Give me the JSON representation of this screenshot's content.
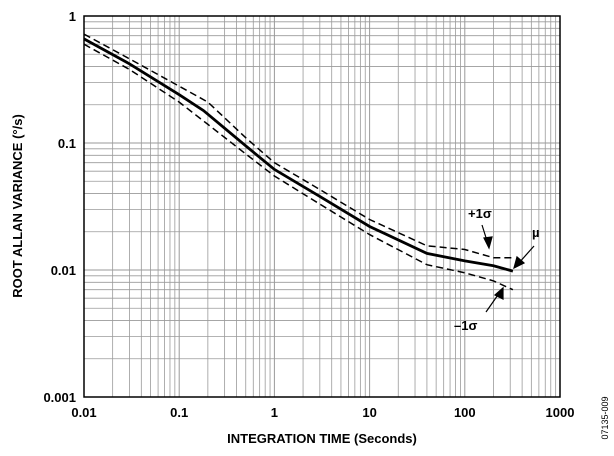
{
  "chart_data": {
    "type": "line",
    "x_scale": "log",
    "y_scale": "log",
    "xlim": [
      0.01,
      1000
    ],
    "ylim": [
      0.001,
      1
    ],
    "grid": true,
    "xlabel": "INTEGRATION TIME (Seconds)",
    "ylabel": "ROOT ALLAN VARIANCE (°/s)",
    "x_ticks": [
      "0.01",
      "0.1",
      "1",
      "10",
      "100",
      "1000"
    ],
    "y_ticks": [
      "0.001",
      "0.01",
      "0.1",
      "1"
    ],
    "series": [
      {
        "name": "µ",
        "style": "solid",
        "x": [
          0.01,
          0.03,
          0.1,
          0.18,
          0.5,
          1,
          3,
          10,
          40,
          100,
          200,
          320
        ],
        "y": [
          0.66,
          0.42,
          0.24,
          0.18,
          0.095,
          0.062,
          0.038,
          0.022,
          0.0135,
          0.0118,
          0.0108,
          0.0098
        ]
      },
      {
        "name": "+1σ",
        "style": "dashed",
        "x": [
          0.01,
          0.03,
          0.1,
          0.2,
          0.5,
          1,
          3,
          10,
          40,
          100,
          200,
          320
        ],
        "y": [
          0.72,
          0.46,
          0.28,
          0.21,
          0.11,
          0.07,
          0.043,
          0.025,
          0.0155,
          0.0145,
          0.0125,
          0.0125
        ]
      },
      {
        "name": "−1σ",
        "style": "dashed",
        "x": [
          0.01,
          0.03,
          0.1,
          0.2,
          0.5,
          1,
          3,
          10,
          40,
          100,
          200,
          320
        ],
        "y": [
          0.6,
          0.38,
          0.21,
          0.14,
          0.082,
          0.055,
          0.033,
          0.019,
          0.011,
          0.0095,
          0.0082,
          0.007
        ]
      }
    ],
    "annotations": [
      "+1σ",
      "µ",
      "–1σ"
    ]
  },
  "figure_id": "07135-009"
}
